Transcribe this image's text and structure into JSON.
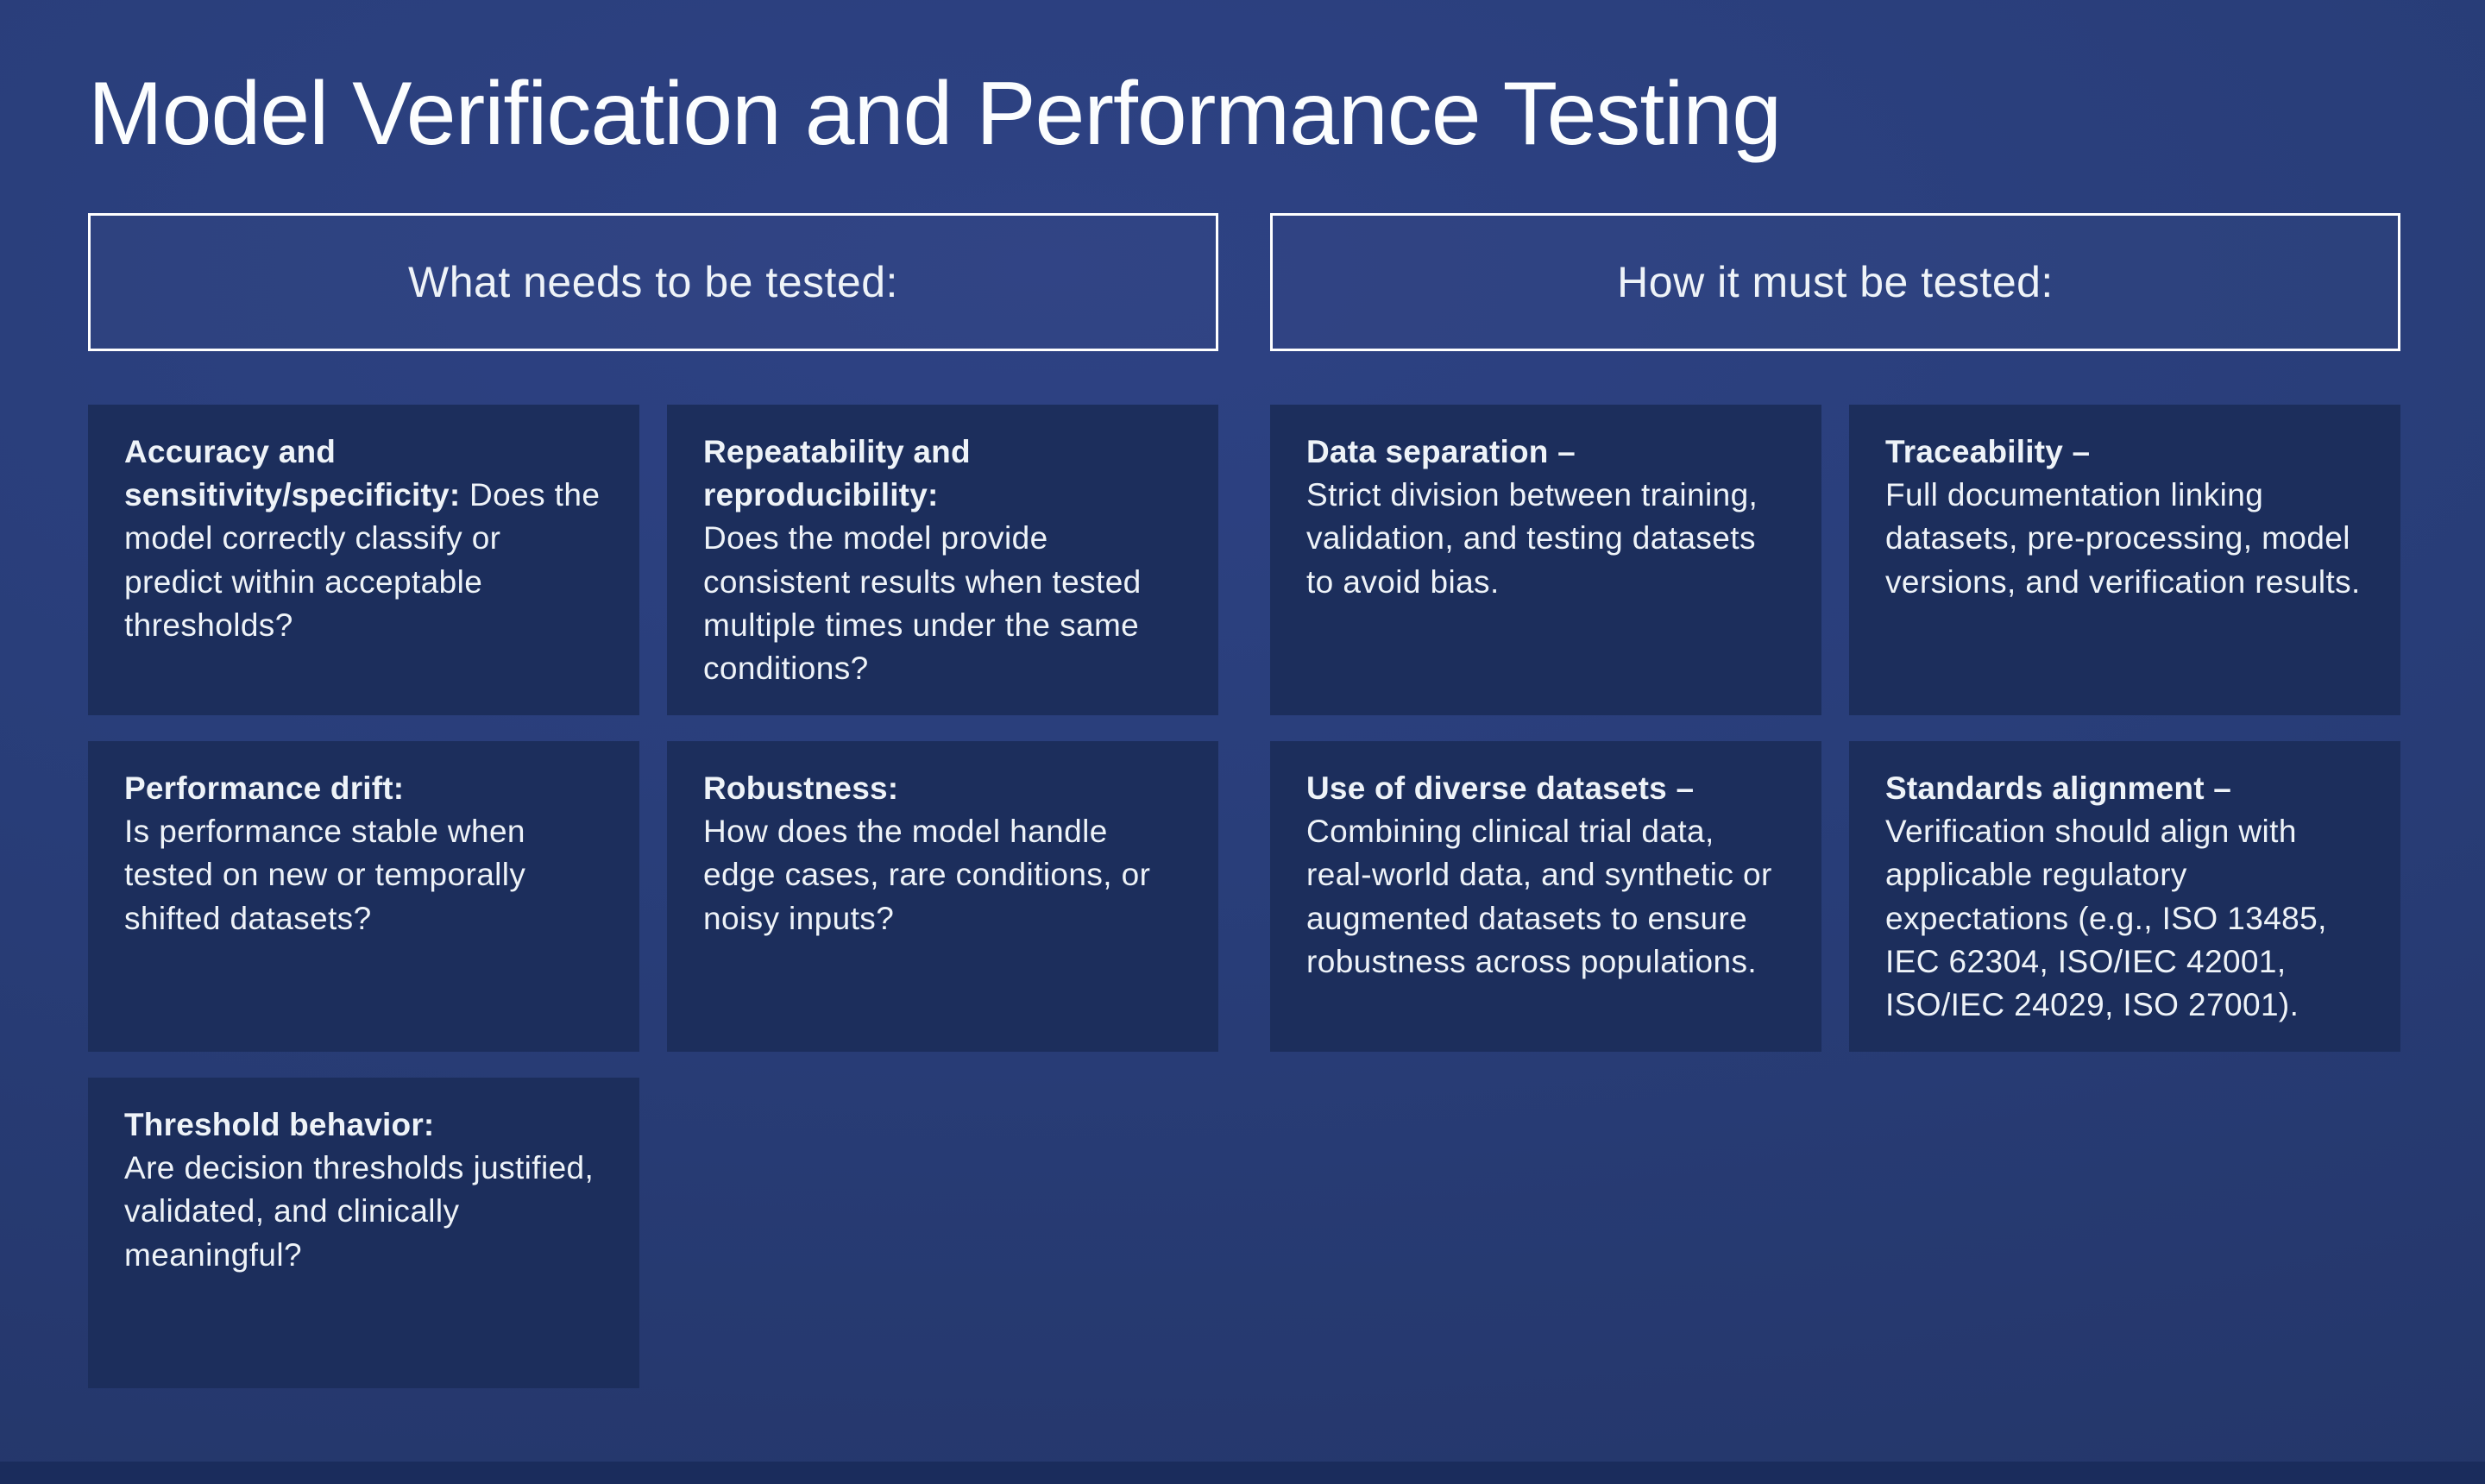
{
  "slide": {
    "title": "Model Verification and Performance Testing",
    "left_header": "What needs to be tested:",
    "right_header": "How it must be tested:"
  },
  "cards": {
    "left": [
      {
        "lead": "Accuracy and sensitivity/specificity:",
        "body": "Does the model correctly classify or predict within acceptable thresholds?"
      },
      {
        "lead": "Repeatability and reproducibility:",
        "body": "Does the model provide consistent results when tested multiple times under the same conditions?"
      },
      {
        "lead": "Performance drift:",
        "body": "Is performance stable when tested on new or temporally shifted datasets?"
      },
      {
        "lead": "Robustness:",
        "body": "How does the model handle edge cases, rare conditions, or noisy inputs?"
      },
      {
        "lead": "Threshold behavior:",
        "body": "Are decision thresholds justified, validated, and clinically meaningful?"
      }
    ],
    "right": [
      {
        "lead": "Data separation –",
        "body": "Strict division between training, validation, and testing datasets to avoid bias."
      },
      {
        "lead": "Traceability –",
        "body": "Full documentation linking datasets, pre-processing, model versions, and verification results."
      },
      {
        "lead": "Use of diverse datasets –",
        "body": "Combining clinical trial data, real-world data, and synthetic or augmented datasets to ensure robustness across populations."
      },
      {
        "lead": "Standards alignment –",
        "body": "Verification should align with applicable regulatory expectations (e.g., ISO 13485, IEC 62304, ISO/IEC 42001, ISO/IEC 24029, ISO 27001)."
      }
    ]
  },
  "colors": {
    "background": "#293e7a",
    "card_background": "#1c2e5c",
    "header_border": "#ffffff",
    "text": "#eef3f8",
    "footer_strip": "#1a2c5c"
  }
}
